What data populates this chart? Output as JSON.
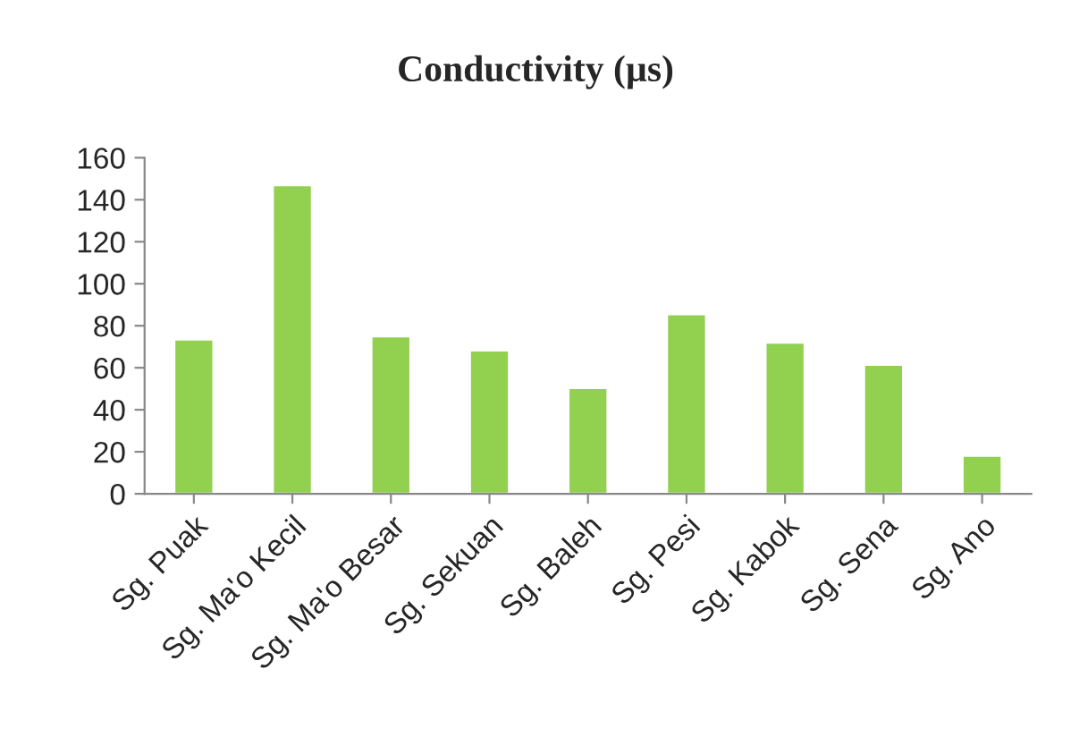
{
  "chart_data": {
    "type": "bar",
    "title": "Conductivity (µs)",
    "categories": [
      "Sg. Puak",
      "Sg. Ma'o Kecil",
      "Sg. Ma'o Besar",
      "Sg. Sekuan",
      "Sg. Baleh",
      "Sg. Pesi",
      "Sg. Kabok",
      "Sg. Sena",
      "Sg. Ano"
    ],
    "values": [
      73.6,
      147,
      75,
      68.3,
      50.4,
      85.6,
      72.1,
      61.5,
      18.2
    ],
    "color": "#92d050",
    "ylim": [
      0,
      160
    ],
    "yticks": [
      0,
      20,
      40,
      60,
      80,
      100,
      120,
      140,
      160
    ],
    "grid": false,
    "legend": false
  }
}
